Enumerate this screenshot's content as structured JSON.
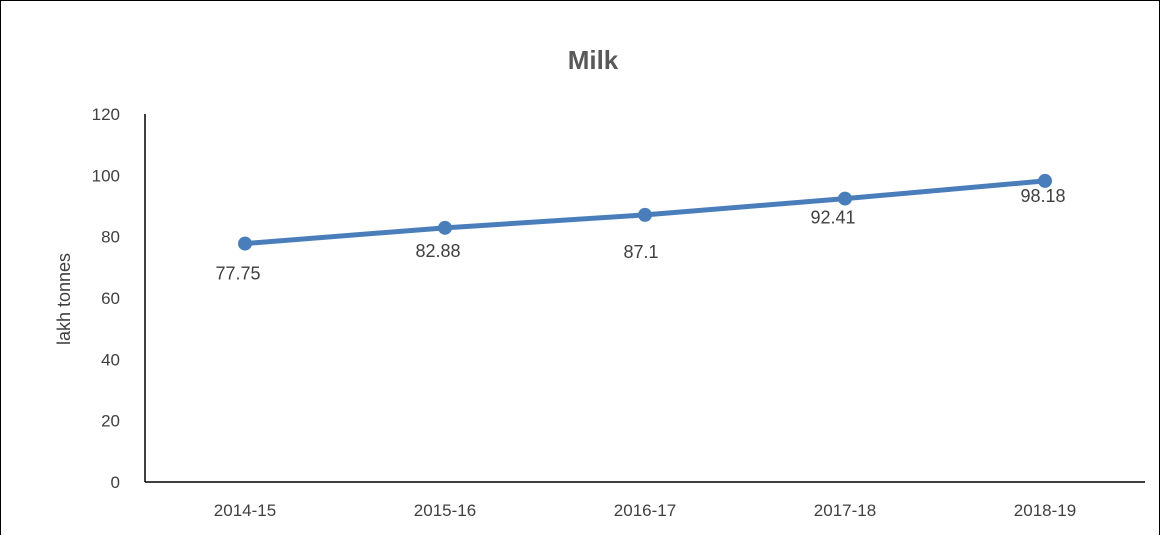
{
  "chart_data": {
    "type": "line",
    "title": "Milk",
    "xlabel": "",
    "ylabel": "lakh tonnes",
    "categories": [
      "2014-15",
      "2015-16",
      "2016-17",
      "2017-18",
      "2018-19"
    ],
    "series": [
      {
        "values": [
          77.75,
          82.88,
          87.1,
          92.41,
          98.18
        ],
        "data_labels": [
          "77.75",
          "82.88",
          "87.1",
          "92.41",
          "98.18"
        ],
        "color": "#4a7ebb"
      }
    ],
    "ylim": [
      0,
      120
    ],
    "yticks": [
      0,
      20,
      40,
      60,
      80,
      100,
      120
    ],
    "grid": false,
    "legend": "none"
  }
}
